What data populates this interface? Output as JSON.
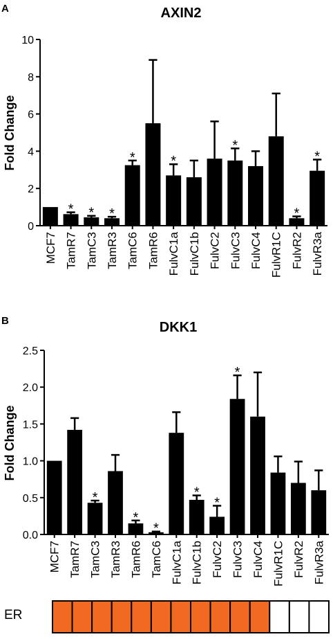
{
  "chart_data": [
    {
      "type": "bar",
      "panel": "A",
      "title": "AXIN2",
      "xlabel": "",
      "ylabel": "Fold Change",
      "ylim": [
        0,
        10
      ],
      "yticks": [
        "0",
        "2",
        "4",
        "6",
        "8",
        "10"
      ],
      "categories": [
        "MCF7",
        "TamR7",
        "TamC3",
        "TamR3",
        "TamC6",
        "TamR6",
        "FulvC1a",
        "FulvC1b",
        "FulvC2",
        "FulvC3",
        "FulvC4",
        "FulvR1C",
        "FulvR2",
        "FulvR3a"
      ],
      "values": [
        1.0,
        0.62,
        0.45,
        0.4,
        3.25,
        5.5,
        2.7,
        2.6,
        3.6,
        3.5,
        3.2,
        4.8,
        0.4,
        2.95
      ],
      "errors": [
        0.0,
        0.1,
        0.08,
        0.08,
        0.25,
        3.4,
        0.6,
        0.9,
        2.0,
        0.65,
        0.8,
        2.3,
        0.1,
        0.6
      ],
      "significant": [
        false,
        true,
        true,
        true,
        true,
        false,
        true,
        false,
        false,
        true,
        false,
        false,
        true,
        true
      ],
      "significance_marker": "*",
      "bar_color": "#000000"
    },
    {
      "type": "bar",
      "panel": "B",
      "title": "DKK1",
      "xlabel": "",
      "ylabel": "Fold Change",
      "ylim": [
        0,
        2.5
      ],
      "yticks": [
        "0.0",
        "0.5",
        "1.0",
        "1.5",
        "2.0",
        "2.5"
      ],
      "categories": [
        "MCF7",
        "TamR7",
        "TamC3",
        "TamR3",
        "TamR6",
        "TamC6",
        "FulvC1a",
        "FulvC1b",
        "FulvC2",
        "FulvC3",
        "FulvC4",
        "FulvR1C",
        "FulvR2",
        "FulvR3a"
      ],
      "values": [
        1.0,
        1.42,
        0.43,
        0.86,
        0.15,
        0.03,
        1.38,
        0.47,
        0.24,
        1.84,
        1.6,
        0.84,
        0.7,
        0.6
      ],
      "errors": [
        0.0,
        0.16,
        0.03,
        0.22,
        0.04,
        0.01,
        0.28,
        0.06,
        0.15,
        0.32,
        0.6,
        0.22,
        0.29,
        0.27
      ],
      "significant": [
        false,
        false,
        true,
        false,
        true,
        true,
        false,
        true,
        true,
        true,
        false,
        false,
        false,
        false
      ],
      "significance_marker": "*",
      "bar_color": "#000000"
    }
  ],
  "er_strip": {
    "label": "ER",
    "status": [
      true,
      true,
      true,
      true,
      true,
      true,
      true,
      true,
      true,
      true,
      true,
      false,
      false,
      false
    ],
    "positive_color": "#f26a21",
    "negative_color": "#ffffff"
  }
}
